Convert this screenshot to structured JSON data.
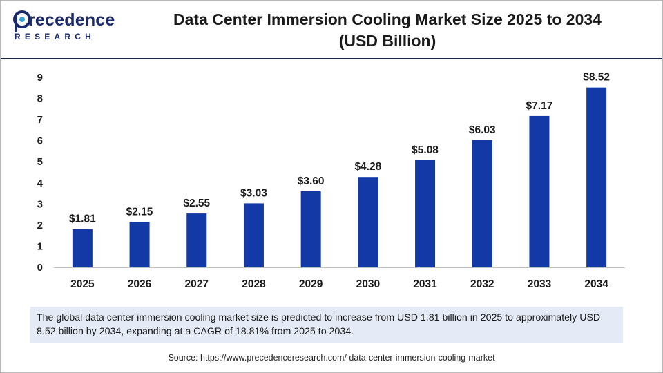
{
  "brand": {
    "name_main": "recedence",
    "name_sub": "RESEARCH",
    "accent": "#1b2a6b"
  },
  "chart_data": {
    "type": "bar",
    "title": "Data Center Immersion Cooling Market Size 2025 to 2034 (USD Billion)",
    "title_lines": [
      "Data Center Immersion Cooling Market Size 2025 to 2034",
      "(USD Billion)"
    ],
    "categories": [
      "2025",
      "2026",
      "2027",
      "2028",
      "2029",
      "2030",
      "2031",
      "2032",
      "2033",
      "2034"
    ],
    "values": [
      1.81,
      2.15,
      2.55,
      3.03,
      3.6,
      4.28,
      5.08,
      6.03,
      7.17,
      8.52
    ],
    "data_labels": [
      "$1.81",
      "$2.15",
      "$2.55",
      "$3.03",
      "$3.60",
      "$4.28",
      "$5.08",
      "$6.03",
      "$7.17",
      "$8.52"
    ],
    "xlabel": "",
    "ylabel": "",
    "ylim": [
      0,
      9
    ],
    "yticks": [
      "0",
      "1",
      "2",
      "3",
      "4",
      "5",
      "6",
      "7",
      "8",
      "9"
    ],
    "grid": false,
    "legend": "none",
    "bar_color": "#1239a6"
  },
  "description": "The global data center immersion cooling market size is predicted to increase from USD 1.81 billion in 2025 to approximately USD 8.52 billion by 2034, expanding at a CAGR of 18.81% from 2025 to 2034.",
  "source": "Source: https://www.precedenceresearch.com/ data-center-immersion-cooling-market"
}
